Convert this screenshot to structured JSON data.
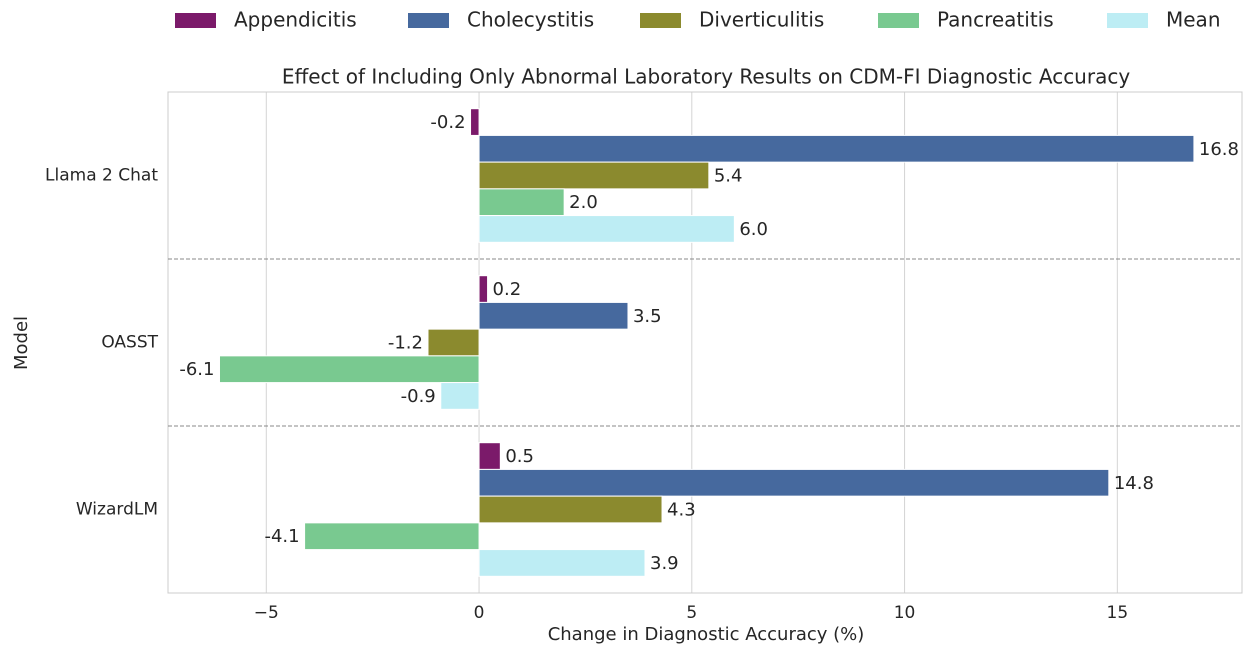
{
  "chart_data": {
    "type": "hbar",
    "title": "Effect of Including Only Abnormal Laboratory Results on CDM-FI Diagnostic Accuracy",
    "x_label": "Change in Diagnostic Accuracy (%)",
    "y_label": "Model",
    "categories": [
      "Llama 2 Chat",
      "OASST",
      "WizardLM"
    ],
    "series": [
      {
        "name": "Appendicitis",
        "color": "#7b1a6a",
        "values": [
          -0.2,
          0.2,
          0.5
        ]
      },
      {
        "name": "Cholecystitis",
        "color": "#46699e",
        "values": [
          16.8,
          3.5,
          14.8
        ]
      },
      {
        "name": "Diverticulitis",
        "color": "#8b8a2e",
        "values": [
          5.4,
          -1.2,
          4.3
        ]
      },
      {
        "name": "Pancreatitis",
        "color": "#79c990",
        "values": [
          2.0,
          -6.1,
          -4.1
        ],
        "value_labels": [
          "2.0",
          "-6.1",
          "-4.1"
        ]
      },
      {
        "name": "Mean",
        "color": "#bdedf4",
        "values": [
          6.0,
          -0.9,
          3.9
        ],
        "value_labels": [
          "6.0",
          "-0.9",
          "3.9"
        ]
      }
    ],
    "xlim": [
      -7.31,
      17.93
    ],
    "xticks": [
      {
        "value": -5,
        "label": "−5"
      },
      0,
      5,
      10,
      15
    ],
    "grid": true,
    "legend": "top"
  }
}
